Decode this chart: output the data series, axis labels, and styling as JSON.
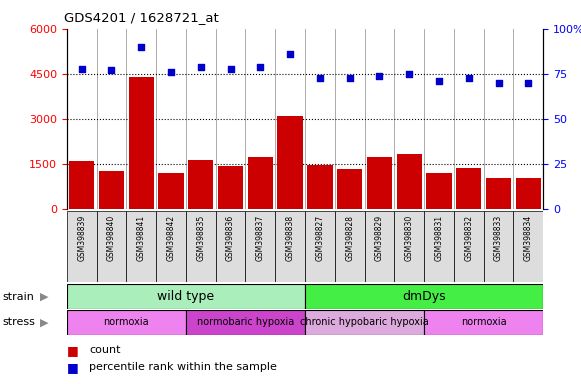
{
  "title": "GDS4201 / 1628721_at",
  "samples": [
    "GSM398839",
    "GSM398840",
    "GSM398841",
    "GSM398842",
    "GSM398835",
    "GSM398836",
    "GSM398837",
    "GSM398838",
    "GSM398827",
    "GSM398828",
    "GSM398829",
    "GSM398830",
    "GSM398831",
    "GSM398832",
    "GSM398833",
    "GSM398834"
  ],
  "counts": [
    1600,
    1280,
    4400,
    1200,
    1650,
    1450,
    1750,
    3100,
    1480,
    1350,
    1750,
    1850,
    1200,
    1380,
    1050,
    1050
  ],
  "percentile_ranks": [
    78,
    77,
    90,
    76,
    79,
    78,
    79,
    86,
    73,
    73,
    74,
    75,
    71,
    73,
    70,
    70
  ],
  "ylim_left": [
    0,
    6000
  ],
  "ylim_right": [
    0,
    100
  ],
  "yticks_left": [
    0,
    1500,
    3000,
    4500,
    6000
  ],
  "yticks_right": [
    0,
    25,
    50,
    75,
    100
  ],
  "bar_color": "#cc0000",
  "dot_color": "#0000cc",
  "strain_groups": [
    {
      "label": "wild type",
      "start": 0,
      "end": 8,
      "color": "#aaeebb"
    },
    {
      "label": "dmDys",
      "start": 8,
      "end": 16,
      "color": "#44ee44"
    }
  ],
  "stress_groups": [
    {
      "label": "normoxia",
      "start": 0,
      "end": 4,
      "color": "#ee82ee"
    },
    {
      "label": "normobaric hypoxia",
      "start": 4,
      "end": 8,
      "color": "#cc44cc"
    },
    {
      "label": "chronic hypobaric hypoxia",
      "start": 8,
      "end": 12,
      "color": "#ddaadd"
    },
    {
      "label": "normoxia",
      "start": 12,
      "end": 16,
      "color": "#ee82ee"
    }
  ]
}
